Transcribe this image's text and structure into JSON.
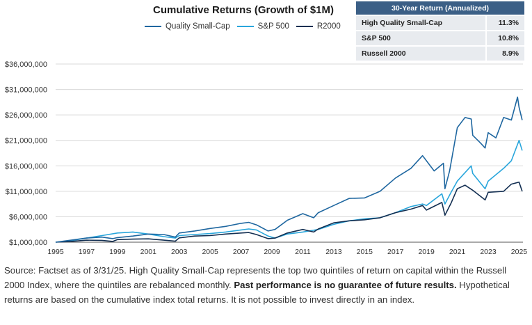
{
  "title": "Cumulative Returns (Growth of $1M)",
  "legend": [
    {
      "label": "Quality Small-Cap",
      "color": "#1f67a0"
    },
    {
      "label": "S&P 500",
      "color": "#29a6dc"
    },
    {
      "label": "R2000",
      "color": "#132f52"
    }
  ],
  "returns_table": {
    "header": "30-Year Return (Annualized)",
    "rows": [
      {
        "name": "High Quality Small-Cap",
        "value": "11.3%"
      },
      {
        "name": "S&P 500",
        "value": "10.8%"
      },
      {
        "name": "Russell 2000",
        "value": "8.9%"
      }
    ]
  },
  "chart_data": {
    "type": "line",
    "title": "Cumulative Returns (Growth of $1M)",
    "xlabel": "",
    "ylabel": "",
    "xlim": [
      1995,
      2025.25
    ],
    "ylim": [
      1000000,
      36000000
    ],
    "y_ticks": [
      1000000,
      6000000,
      11000000,
      16000000,
      21000000,
      26000000,
      31000000,
      36000000
    ],
    "y_tick_labels": [
      "$1,000,000",
      "$6,000,000",
      "$11,000,000",
      "$16,000,000",
      "$21,000,000",
      "$26,000,000",
      "$31,000,000",
      "$36,000,000"
    ],
    "x_ticks": [
      1995,
      1997,
      1999,
      2001,
      2003,
      2005,
      2007,
      2009,
      2011,
      2013,
      2015,
      2017,
      2019,
      2021,
      2023,
      2025
    ],
    "x_tick_labels": [
      "1995",
      "1997",
      "1999",
      "2001",
      "2003",
      "2005",
      "2007",
      "2009",
      "2011",
      "2013",
      "2015",
      "2017",
      "2019",
      "2021",
      "2023",
      "2025"
    ],
    "series": [
      {
        "name": "Quality Small-Cap",
        "color": "#1f67a0",
        "x": [
          1995,
          1996,
          1997,
          1998,
          1998.7,
          1999,
          2000,
          2001,
          2002,
          2002.75,
          2003,
          2004,
          2005,
          2006,
          2007,
          2007.5,
          2008,
          2008.75,
          2009.2,
          2010,
          2011,
          2011.7,
          2012,
          2013,
          2014,
          2015,
          2016,
          2017,
          2018,
          2018.75,
          2019,
          2019.5,
          2020.1,
          2020.2,
          2020.5,
          2021,
          2021.5,
          2021.9,
          2022,
          2022.5,
          2022.8,
          2023,
          2023.5,
          2024,
          2024.5,
          2024.9,
          2025,
          2025.2
        ],
        "y": [
          1000000,
          1400000,
          1800000,
          2000000,
          1700000,
          1900000,
          2200000,
          2600000,
          2500000,
          2000000,
          2800000,
          3200000,
          3700000,
          4100000,
          4700000,
          4900000,
          4400000,
          3200000,
          3500000,
          5300000,
          6600000,
          5800000,
          6800000,
          8200000,
          9600000,
          9700000,
          11000000,
          13600000,
          15500000,
          18000000,
          17000000,
          15000000,
          16500000,
          11500000,
          15000000,
          23500000,
          25500000,
          25200000,
          22000000,
          20500000,
          19500000,
          22500000,
          21500000,
          25500000,
          25000000,
          29500000,
          27500000,
          25000000
        ]
      },
      {
        "name": "S&P 500",
        "color": "#29a6dc",
        "x": [
          1995,
          1996,
          1997,
          1998,
          1999,
          2000,
          2001,
          2002,
          2002.75,
          2003,
          2004,
          2005,
          2006,
          2007,
          2007.5,
          2008,
          2008.75,
          2009.2,
          2010,
          2011,
          2012,
          2013,
          2014,
          2015,
          2016,
          2017,
          2018,
          2018.75,
          2019,
          2020,
          2020.2,
          2020.6,
          2021,
          2021.9,
          2022,
          2022.8,
          2023,
          2024,
          2024.5,
          2025,
          2025.2
        ],
        "y": [
          1000000,
          1300000,
          1800000,
          2300000,
          2800000,
          3000000,
          2600000,
          2100000,
          1800000,
          2300000,
          2500000,
          2700000,
          3000000,
          3400000,
          3600000,
          3400000,
          2200000,
          1800000,
          2600000,
          3000000,
          3500000,
          4500000,
          5200000,
          5600000,
          5800000,
          6800000,
          8000000,
          8500000,
          8200000,
          10500000,
          8500000,
          10800000,
          13000000,
          16000000,
          14500000,
          11500000,
          13000000,
          15500000,
          17000000,
          21000000,
          19000000
        ]
      },
      {
        "name": "R2000",
        "color": "#132f52",
        "x": [
          1995,
          1996,
          1997,
          1998,
          1998.7,
          1999,
          2000,
          2001,
          2002,
          2002.75,
          2003,
          2004,
          2005,
          2006,
          2007,
          2007.5,
          2008,
          2008.75,
          2009.2,
          2010,
          2011,
          2011.7,
          2012,
          2013,
          2014,
          2015,
          2016,
          2017,
          2018,
          2018.75,
          2019,
          2020,
          2020.2,
          2020.6,
          2021,
          2021.5,
          2022,
          2022.8,
          2023,
          2024,
          2024.5,
          2025,
          2025.2
        ],
        "y": [
          1000000,
          1150000,
          1400000,
          1350000,
          1150000,
          1500000,
          1600000,
          1650000,
          1400000,
          1200000,
          1850000,
          2200000,
          2300000,
          2600000,
          2800000,
          2900000,
          2500000,
          1700000,
          1800000,
          2800000,
          3500000,
          3000000,
          3600000,
          4800000,
          5200000,
          5400000,
          5800000,
          6800000,
          7500000,
          8200000,
          7300000,
          8800000,
          6300000,
          8700000,
          11500000,
          12200000,
          11200000,
          9300000,
          10800000,
          11000000,
          12400000,
          12800000,
          11000000
        ]
      }
    ]
  },
  "source": {
    "part1": "Source: Factset as of 3/31/25. High Quality Small-Cap represents the top two quintiles of return on capital within the Russell 2000 Index, where the quintiles are rebalanced monthly. ",
    "bold": "Past performance is no guarantee of future results.",
    "part2": " Hypothetical returns are based on the cumulative index total returns. It is not possible to invest directly in an index."
  }
}
